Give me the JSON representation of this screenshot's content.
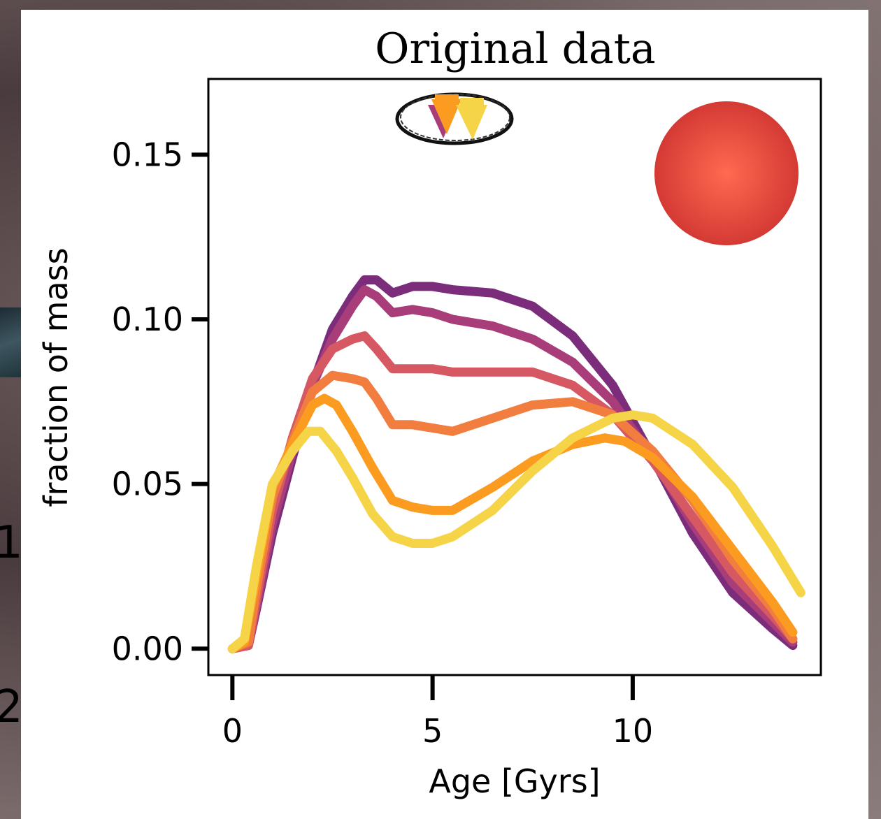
{
  "chart_data": {
    "type": "line",
    "title": "Original data",
    "xlabel": "Age [Gyrs]",
    "ylabel": "fraction of mass",
    "xlim": [
      -0.6,
      14.7
    ],
    "ylim": [
      -0.008,
      0.173
    ],
    "x_ticks": [
      {
        "value": 0,
        "label": "0"
      },
      {
        "value": 5,
        "label": "5"
      },
      {
        "value": 10,
        "label": "10"
      }
    ],
    "y_ticks": [
      {
        "value": 0.0,
        "label": "0.00"
      },
      {
        "value": 0.05,
        "label": "0.05"
      },
      {
        "value": 0.1,
        "label": "0.10"
      },
      {
        "value": 0.15,
        "label": "0.15"
      }
    ],
    "grid": false,
    "series": [
      {
        "color": "#7b2d7c",
        "points": [
          [
            0,
            0
          ],
          [
            0.4,
            0.001
          ],
          [
            0.6,
            0.012
          ],
          [
            1,
            0.035
          ],
          [
            1.5,
            0.058
          ],
          [
            2,
            0.08
          ],
          [
            2.5,
            0.097
          ],
          [
            3,
            0.107
          ],
          [
            3.3,
            0.112
          ],
          [
            3.6,
            0.112
          ],
          [
            4,
            0.108
          ],
          [
            4.5,
            0.11
          ],
          [
            5,
            0.11
          ],
          [
            5.5,
            0.109
          ],
          [
            6.5,
            0.108
          ],
          [
            7.5,
            0.104
          ],
          [
            8.5,
            0.095
          ],
          [
            9.5,
            0.08
          ],
          [
            10.5,
            0.058
          ],
          [
            11.5,
            0.035
          ],
          [
            12.5,
            0.017
          ],
          [
            13.5,
            0.006
          ],
          [
            14,
            0.001
          ]
        ]
      },
      {
        "color": "#a83d7a",
        "points": [
          [
            0,
            0
          ],
          [
            0.4,
            0.001
          ],
          [
            0.6,
            0.013
          ],
          [
            1,
            0.038
          ],
          [
            1.5,
            0.06
          ],
          [
            2,
            0.08
          ],
          [
            2.5,
            0.094
          ],
          [
            3,
            0.104
          ],
          [
            3.3,
            0.109
          ],
          [
            3.6,
            0.107
          ],
          [
            4,
            0.102
          ],
          [
            4.5,
            0.103
          ],
          [
            5,
            0.102
          ],
          [
            5.5,
            0.1
          ],
          [
            6.5,
            0.098
          ],
          [
            7.5,
            0.094
          ],
          [
            8.5,
            0.087
          ],
          [
            9.5,
            0.075
          ],
          [
            10.5,
            0.058
          ],
          [
            11.5,
            0.038
          ],
          [
            12.5,
            0.02
          ],
          [
            13.5,
            0.008
          ],
          [
            14,
            0.002
          ]
        ]
      },
      {
        "color": "#d55863",
        "points": [
          [
            0,
            0
          ],
          [
            0.4,
            0.001
          ],
          [
            0.6,
            0.015
          ],
          [
            1,
            0.042
          ],
          [
            1.5,
            0.064
          ],
          [
            2,
            0.082
          ],
          [
            2.5,
            0.091
          ],
          [
            3,
            0.094
          ],
          [
            3.3,
            0.095
          ],
          [
            3.6,
            0.091
          ],
          [
            4,
            0.085
          ],
          [
            4.5,
            0.085
          ],
          [
            5,
            0.085
          ],
          [
            5.5,
            0.084
          ],
          [
            6.5,
            0.084
          ],
          [
            7.5,
            0.084
          ],
          [
            8.5,
            0.08
          ],
          [
            9.5,
            0.071
          ],
          [
            10.5,
            0.057
          ],
          [
            11.5,
            0.04
          ],
          [
            12.5,
            0.023
          ],
          [
            13.5,
            0.01
          ],
          [
            14,
            0.003
          ]
        ]
      },
      {
        "color": "#f17d3f",
        "points": [
          [
            0,
            0
          ],
          [
            0.4,
            0.002
          ],
          [
            0.6,
            0.018
          ],
          [
            1,
            0.046
          ],
          [
            1.5,
            0.063
          ],
          [
            2,
            0.078
          ],
          [
            2.5,
            0.083
          ],
          [
            3,
            0.082
          ],
          [
            3.3,
            0.081
          ],
          [
            3.6,
            0.076
          ],
          [
            4,
            0.068
          ],
          [
            4.5,
            0.068
          ],
          [
            5,
            0.067
          ],
          [
            5.5,
            0.066
          ],
          [
            6.5,
            0.07
          ],
          [
            7.5,
            0.074
          ],
          [
            8.5,
            0.075
          ],
          [
            9.5,
            0.071
          ],
          [
            10.5,
            0.06
          ],
          [
            11.5,
            0.045
          ],
          [
            12.5,
            0.027
          ],
          [
            13.5,
            0.012
          ],
          [
            14,
            0.003
          ]
        ]
      },
      {
        "color": "#fb9b1f",
        "points": [
          [
            0,
            0
          ],
          [
            0.3,
            0.002
          ],
          [
            0.6,
            0.022
          ],
          [
            1,
            0.049
          ],
          [
            1.5,
            0.062
          ],
          [
            2,
            0.074
          ],
          [
            2.3,
            0.076
          ],
          [
            2.6,
            0.074
          ],
          [
            3,
            0.066
          ],
          [
            3.5,
            0.055
          ],
          [
            4,
            0.045
          ],
          [
            4.5,
            0.043
          ],
          [
            5,
            0.042
          ],
          [
            5.5,
            0.042
          ],
          [
            6.5,
            0.049
          ],
          [
            7.5,
            0.057
          ],
          [
            8.5,
            0.062
          ],
          [
            9.3,
            0.064
          ],
          [
            9.8,
            0.063
          ],
          [
            10.5,
            0.058
          ],
          [
            11.5,
            0.046
          ],
          [
            12.5,
            0.03
          ],
          [
            13.5,
            0.014
          ],
          [
            14,
            0.005
          ]
        ]
      },
      {
        "color": "#f6d447",
        "points": [
          [
            0,
            0
          ],
          [
            0.3,
            0.003
          ],
          [
            0.6,
            0.025
          ],
          [
            1,
            0.05
          ],
          [
            1.5,
            0.06
          ],
          [
            1.9,
            0.066
          ],
          [
            2.2,
            0.066
          ],
          [
            2.6,
            0.06
          ],
          [
            3,
            0.052
          ],
          [
            3.5,
            0.041
          ],
          [
            4,
            0.034
          ],
          [
            4.5,
            0.032
          ],
          [
            5,
            0.032
          ],
          [
            5.5,
            0.034
          ],
          [
            6.5,
            0.042
          ],
          [
            7.5,
            0.054
          ],
          [
            8.5,
            0.064
          ],
          [
            9.5,
            0.07
          ],
          [
            10,
            0.071
          ],
          [
            10.5,
            0.07
          ],
          [
            11.5,
            0.062
          ],
          [
            12.5,
            0.049
          ],
          [
            13.5,
            0.031
          ],
          [
            14.2,
            0.017
          ]
        ]
      }
    ],
    "markers": {
      "arrow_colors": [
        "#a83d7a",
        "#fb9b1f",
        "#f6d447"
      ],
      "ellipse": "hand-drawn outline",
      "circle_color": "#d94137"
    }
  },
  "left_edge_glyphs": [
    "1",
    "2"
  ]
}
